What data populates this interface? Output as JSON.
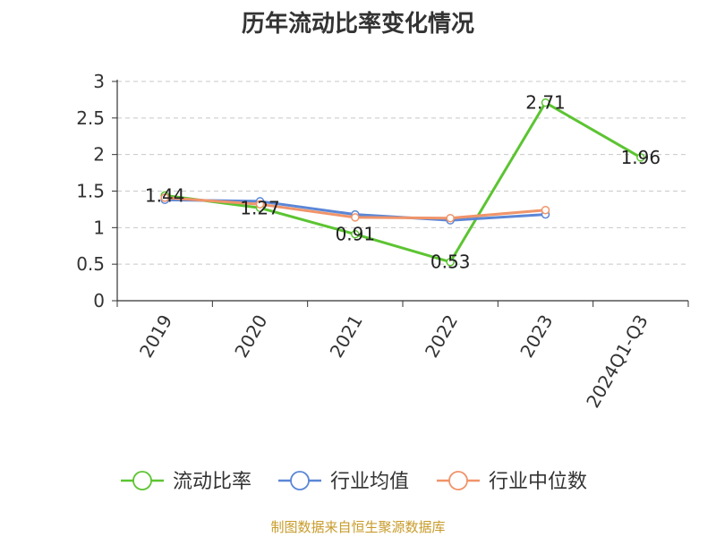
{
  "chart_data": {
    "type": "line",
    "title": "历年流动比率变化情况",
    "source": "制图数据来自恒生聚源数据库",
    "categories": [
      "2019",
      "2020",
      "2021",
      "2022",
      "2023",
      "2024Q1-Q3"
    ],
    "ylim": [
      0,
      3
    ],
    "yticks": [
      "0",
      "0.5",
      "1",
      "1.5",
      "2",
      "2.5",
      "3"
    ],
    "grid": true,
    "legend_position": "bottom",
    "series": [
      {
        "name": "流动比率",
        "color": "#5cc432",
        "values": [
          1.44,
          1.27,
          0.91,
          0.53,
          2.71,
          1.96
        ],
        "labels": [
          "1.44",
          "1.27",
          "0.91",
          "0.53",
          "2.71",
          "1.96"
        ]
      },
      {
        "name": "行业均值",
        "color": "#5b86d6",
        "values": [
          1.38,
          1.36,
          1.18,
          1.1,
          1.18,
          null
        ]
      },
      {
        "name": "行业中位数",
        "color": "#f0946a",
        "values": [
          1.41,
          1.32,
          1.14,
          1.13,
          1.24,
          null
        ]
      }
    ]
  }
}
